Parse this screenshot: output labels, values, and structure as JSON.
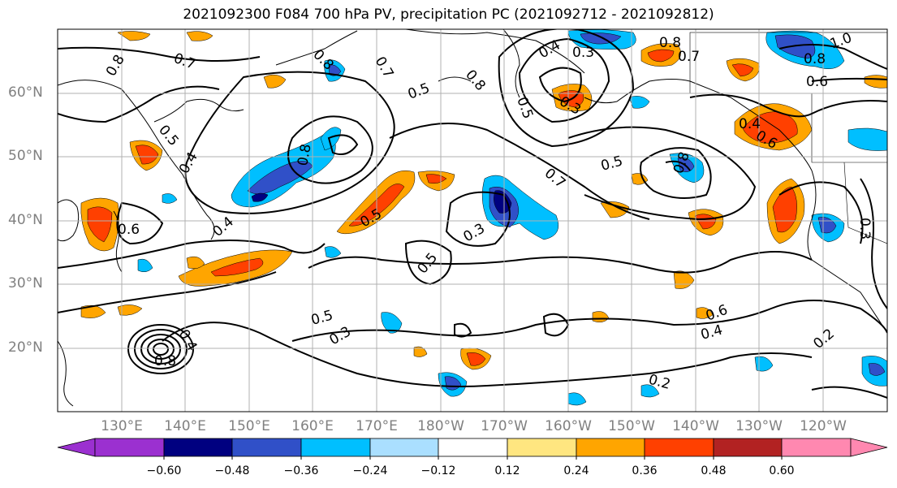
{
  "title": "2021092300 F084 700 hPa PV, precipitation PC (2021092712 - 2021092812)",
  "lat_labels": [
    "60°N",
    "50°N",
    "40°N",
    "30°N",
    "20°N"
  ],
  "lon_labels": [
    "130°E",
    "140°E",
    "150°E",
    "160°E",
    "170°E",
    "180°W",
    "170°W",
    "160°W",
    "150°W",
    "140°W",
    "130°W",
    "120°W"
  ],
  "colorbar": {
    "ticks": [
      "−0.60",
      "−0.48",
      "−0.36",
      "−0.24",
      "−0.12",
      "0.12",
      "0.24",
      "0.36",
      "0.48",
      "0.60"
    ],
    "colors": [
      "#9b30d0",
      "#000080",
      "#3050c8",
      "#00bfff",
      "#aadfff",
      "#ffffff",
      "#ffe680",
      "#ffa500",
      "#ff4000",
      "#b22222",
      "#ff88b0"
    ]
  },
  "contour_labels": [
    "0.8",
    "0.7",
    "0.8",
    "0.7",
    "0.8",
    "0.4",
    "0.8",
    "0.7",
    "1.0",
    "0.8",
    "0.6",
    "0.5",
    "0.5",
    "0.3",
    "0.8",
    "0.5",
    "0.7",
    "0.5",
    "0.6",
    "0.4",
    "0.8",
    "0.4",
    "0.6",
    "0.4",
    "0.5",
    "0.3",
    "0.5",
    "0.3",
    "0.5",
    "0.3",
    "0.6",
    "0.4",
    "0.2",
    "0.2",
    "0.3",
    "0.4",
    "0.8"
  ],
  "shading_colors": {
    "dark_blue": "#000080",
    "blue": "#3050c8",
    "cyan": "#00bfff",
    "light_blue": "#aadfff",
    "yellow": "#ffe680",
    "orange": "#ffa500",
    "red_orange": "#ff4000"
  }
}
